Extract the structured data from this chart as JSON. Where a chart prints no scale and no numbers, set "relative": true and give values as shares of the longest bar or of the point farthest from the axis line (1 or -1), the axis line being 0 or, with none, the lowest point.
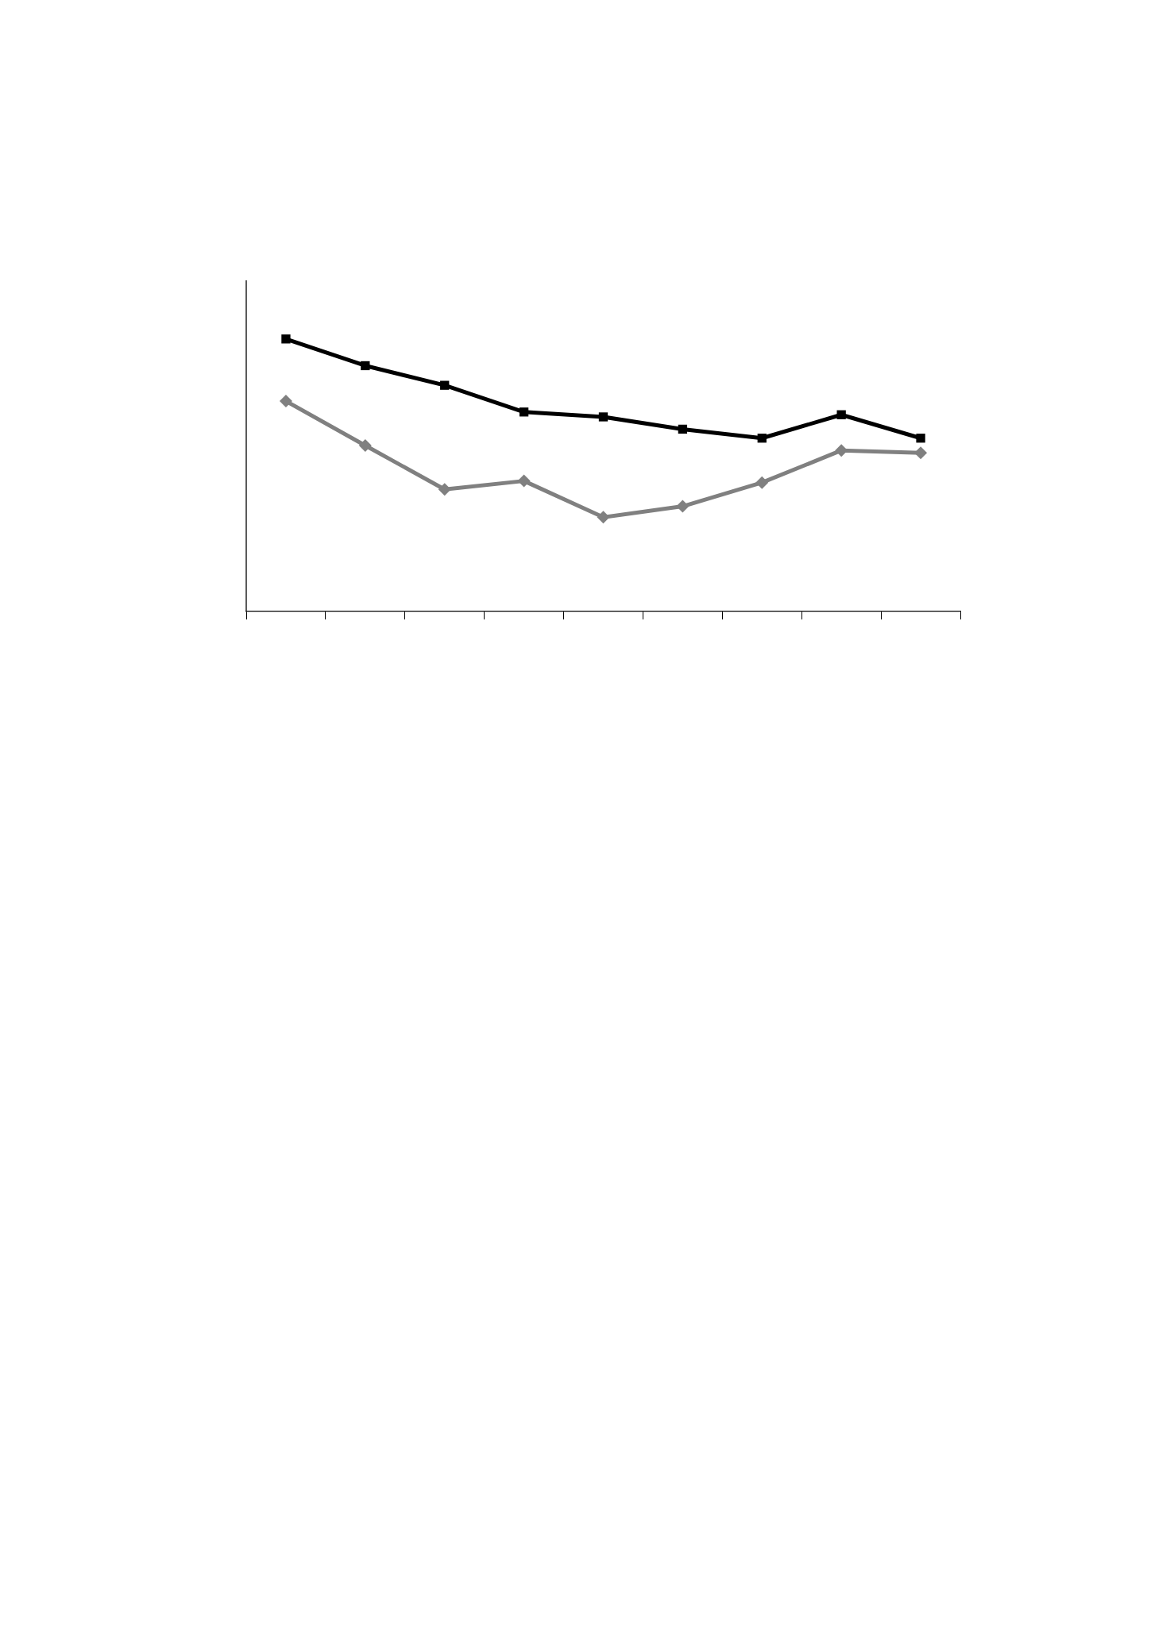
{
  "chart_data": {
    "type": "line",
    "relative": true,
    "categories": [
      null,
      null,
      null,
      null,
      null,
      null,
      null,
      null,
      null
    ],
    "series": [
      {
        "color": "#000000",
        "marker": "square",
        "values": [
          1,
          0.902,
          0.83,
          0.732,
          0.714,
          0.669,
          0.636,
          0.722,
          0.636
        ]
      },
      {
        "color": "#808080",
        "marker": "diamond",
        "values": [
          0.772,
          0.609,
          0.448,
          0.479,
          0.346,
          0.386,
          0.473,
          0.591,
          0.582
        ]
      }
    ],
    "legend": false,
    "grid": false,
    "tick_labels": false
  }
}
